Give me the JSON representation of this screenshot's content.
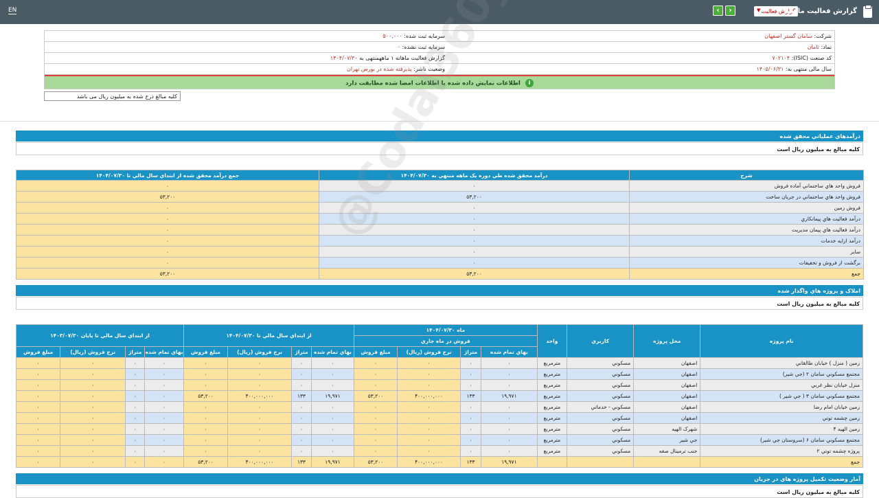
{
  "topbar": {
    "lang": "EN",
    "title": "گزارش فعالیت ماهانه",
    "report_type": "گزارش فعالیت",
    "next": "›",
    "prev": "‹"
  },
  "info": {
    "company_label": "شرکت:",
    "company_value": "سامان گستر اصفهان",
    "symbol_label": "نماد:",
    "symbol_value": "ثامان",
    "isic_label": "کد صنعت (ISIC):",
    "isic_value": "۷۰۲۱۰۴",
    "fiscal_label": "سال مالی منتهی به:",
    "fiscal_value": "۱۴۰۵/۰۶/۳۱",
    "capital_reg_label": "سرمایه ثبت شده:",
    "capital_reg_value": "۵۰۰,۰۰۰",
    "capital_unreg_label": "سرمایه ثبت نشده:",
    "capital_unreg_value": "۰",
    "report_label": "گزارش فعالیت ماهانه ۱ ماهه",
    "report_to": "منتهی به",
    "report_date": "۱۴۰۴/۰۷/۳۰",
    "status_label": "وضعیت ناشر:",
    "status_value": "پذیرفته شده در بورس تهران",
    "match_text": "اطلاعات نمایش داده شده با اطلاعات امضا شده مطابقت دارد",
    "match_icon": "i",
    "amount_note": "کلیه مبالغ درج شده به میلیون ریال می باشد"
  },
  "section1": {
    "title": "درآمدهاي عملياتي محقق شده",
    "note": "کلیه مبالغ به میلیون ریال است",
    "headers": [
      "شرح",
      "درآمد محقق شده طي دوره يک ماهه منتهي به ۱۴۰۴/۰۷/۳۰",
      "جمع درآمد محقق شده از ابتداي سال مالي تا ۱۴۰۴/۰۷/۳۰"
    ],
    "rows": [
      [
        "فروش واحد هاي ساختماني آماده فروش",
        "۰",
        "۰"
      ],
      [
        "فروش واحد هاي ساختماني در جريان ساخت",
        "۵۳,۲۰۰",
        "۵۳,۲۰۰"
      ],
      [
        "فروش زمين",
        "۰",
        "۰"
      ],
      [
        "درآمد فعاليت هاي پيمانكاري",
        "۰",
        "۰"
      ],
      [
        "درآمد فعاليت هاي پيمان مديريت",
        "۰",
        "۰"
      ],
      [
        "درآمد ارايه خدمات",
        "۰",
        "۰"
      ],
      [
        "ساير",
        "۰",
        "۰"
      ],
      [
        "برگشت از فروش و تخفيفات",
        "۰",
        "۰"
      ],
      [
        "جمع",
        "۵۳,۲۰۰",
        "۵۳,۲۰۰"
      ]
    ]
  },
  "section2": {
    "title": "املاک و پروژه هاي واگذار شده",
    "note": "کلیه مبالغ به میلیون ریال است",
    "h_project": "نام پروژه",
    "h_location": "محل پروژه",
    "h_usage": "كاربري",
    "h_unit": "واحد",
    "h_month": "ماه ۱۴۰۴/۰۷/۳۰",
    "h_month_sub": "فروش در ماه جاري",
    "h_ytd": "از ابتداي سال مالي تا ۱۴۰۴/۰۷/۳۰",
    "h_prev": "از ابتداي سال مالي تا پايان ۱۴۰۳/۰۷/۳۰",
    "sub_cost": "بهاي تمام شده",
    "sub_area": "متراژ",
    "sub_rate": "نرخ فروش (ريال)",
    "sub_amount": "مبلغ فروش",
    "rows": [
      [
        "زمين ( منزل ) خيابان طالقاني",
        "اصفهان",
        "مسكوني",
        "مترمربع",
        "۰",
        "۰",
        "۰",
        "۰",
        "۰",
        "۰",
        "۰",
        "۰",
        "۰",
        "۰",
        "۰",
        "۰"
      ],
      [
        "مجتمع مسكوني سامان ۲ (جي شير)",
        "اصفهان",
        "مسكوني",
        "مترمربع",
        "۰",
        "۰",
        "۰",
        "۰",
        "۰",
        "۰",
        "۰",
        "۰",
        "۰",
        "۰",
        "۰",
        "۰"
      ],
      [
        "منزل خيابان نظر غربي",
        "اصفهان",
        "مسكوني",
        "مترمربع",
        "۰",
        "۰",
        "۰",
        "۰",
        "۰",
        "۰",
        "۰",
        "۰",
        "۰",
        "۰",
        "۰",
        "۰"
      ],
      [
        "مجتمع مسكوني سامان ۳ ( جي شير )",
        "اصفهان",
        "مسكوني",
        "مترمربع",
        "۱۹,۹۷۱",
        "۱۳۳",
        "۴۰۰,۰۰۰,۰۰۰",
        "۵۳,۲۰۰",
        "۱۹,۹۷۱",
        "۱۳۳",
        "۴۰۰,۰۰۰,۰۰۰",
        "۵۳,۲۰۰",
        "۰",
        "۰",
        "۰",
        "۰"
      ],
      [
        "زمين خيابان امام رضا",
        "اصفهان",
        "مسكوني - خدماتي",
        "مترمربع",
        "۰",
        "۰",
        "۰",
        "۰",
        "۰",
        "۰",
        "۰",
        "۰",
        "۰",
        "۰",
        "۰",
        "۰"
      ],
      [
        "زمين چشمه توتي",
        "اصفهان",
        "مسكوني",
        "مترمربع",
        "۰",
        "۰",
        "۰",
        "۰",
        "۰",
        "۰",
        "۰",
        "۰",
        "۰",
        "۰",
        "۰",
        "۰"
      ],
      [
        "زمين الهيه ۴",
        "شهرک الهيه",
        "مسكوني",
        "مترمربع",
        "۰",
        "۰",
        "۰",
        "۰",
        "۰",
        "۰",
        "۰",
        "۰",
        "۰",
        "۰",
        "۰",
        "۰"
      ],
      [
        "مجتمع مسكوني سامان ۶ (سروستان جي شير)",
        "جي شير",
        "مسكوني",
        "مترمربع",
        "۰",
        "۰",
        "۰",
        "۰",
        "۰",
        "۰",
        "۰",
        "۰",
        "۰",
        "۰",
        "۰",
        "۰"
      ],
      [
        "پروژه چشمه توتي ۲",
        "جنب ترمينال صفه",
        "مسكوني",
        "مترمربع",
        "۰",
        "۰",
        "۰",
        "۰",
        "۰",
        "۰",
        "۰",
        "۰",
        "۰",
        "۰",
        "۰",
        "۰"
      ]
    ],
    "sum_row": [
      "جمع",
      "",
      "",
      "",
      "۱۹,۹۷۱",
      "۱۳۳",
      "۴۰۰,۰۰۰,۰۰۰",
      "۵۳,۲۰۰",
      "۱۹,۹۷۱",
      "۱۳۳",
      "۴۰۰,۰۰۰,۰۰۰",
      "۵۳,۲۰۰",
      "۰",
      "۰",
      "۰",
      "۰"
    ]
  },
  "section3": {
    "title": "آمار وضعيت تكميل پروژه هاي در جريان",
    "note": "کلیه مبالغ به میلیون ریال است"
  },
  "watermark": "@Codal360_ir"
}
